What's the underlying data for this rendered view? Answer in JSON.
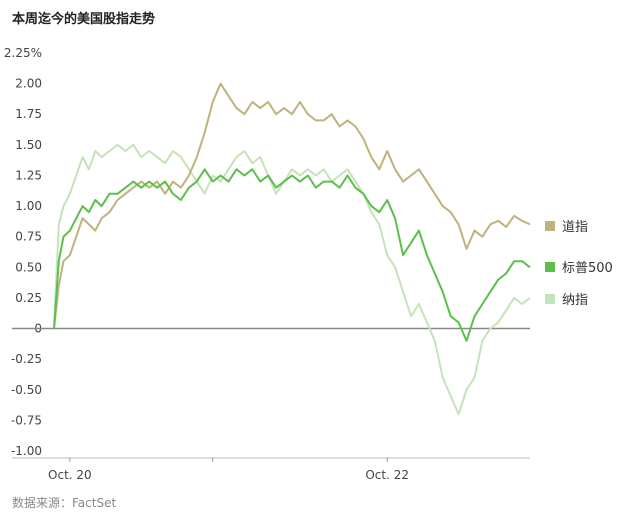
{
  "title": "本周迄今的美国股指走势",
  "source": "数据来源：FactSet",
  "chart_data": {
    "type": "line",
    "title": "本周迄今的美国股指走势",
    "ylabel": "",
    "xlabel": "",
    "ylim": [
      -1.0,
      2.25
    ],
    "yticks": [
      {
        "value": 2.25,
        "label": "2.25%"
      },
      {
        "value": 2.0,
        "label": "2.00"
      },
      {
        "value": 1.75,
        "label": "1.75"
      },
      {
        "value": 1.5,
        "label": "1.50"
      },
      {
        "value": 1.25,
        "label": "1.25"
      },
      {
        "value": 1.0,
        "label": "1.00"
      },
      {
        "value": 0.75,
        "label": "0.75"
      },
      {
        "value": 0.5,
        "label": "0.50"
      },
      {
        "value": 0.25,
        "label": "0.25"
      },
      {
        "value": 0.0,
        "label": "0"
      },
      {
        "value": -0.25,
        "label": "-0.25"
      },
      {
        "value": -0.5,
        "label": "-0.50"
      },
      {
        "value": -0.75,
        "label": "-0.75"
      },
      {
        "value": -1.0,
        "label": "-1.00"
      }
    ],
    "xlim": [
      0,
      3
    ],
    "xticks": [
      {
        "value": 0.1,
        "label": "Oct. 20"
      },
      {
        "value": 1.0,
        "label": ""
      },
      {
        "value": 2.1,
        "label": "Oct. 22"
      }
    ],
    "grid": false,
    "legend_position": "right",
    "series": [
      {
        "name": "道指",
        "color": "#bfb27c",
        "x": [
          0.0,
          0.03,
          0.06,
          0.1,
          0.14,
          0.18,
          0.22,
          0.26,
          0.3,
          0.35,
          0.4,
          0.45,
          0.5,
          0.55,
          0.6,
          0.65,
          0.7,
          0.75,
          0.8,
          0.85,
          0.9,
          0.95,
          1.0,
          1.05,
          1.1,
          1.15,
          1.2,
          1.25,
          1.3,
          1.35,
          1.4,
          1.45,
          1.5,
          1.55,
          1.6,
          1.65,
          1.7,
          1.75,
          1.8,
          1.85,
          1.9,
          1.95,
          2.0,
          2.05,
          2.1,
          2.15,
          2.2,
          2.25,
          2.3,
          2.35,
          2.4,
          2.45,
          2.5,
          2.55,
          2.6,
          2.65,
          2.7,
          2.75,
          2.8,
          2.85,
          2.9,
          2.95,
          3.0
        ],
        "y": [
          0.0,
          0.35,
          0.55,
          0.6,
          0.75,
          0.9,
          0.85,
          0.8,
          0.9,
          0.95,
          1.05,
          1.1,
          1.15,
          1.2,
          1.15,
          1.2,
          1.1,
          1.2,
          1.15,
          1.25,
          1.4,
          1.6,
          1.85,
          2.0,
          1.9,
          1.8,
          1.75,
          1.85,
          1.8,
          1.85,
          1.75,
          1.8,
          1.75,
          1.85,
          1.75,
          1.7,
          1.7,
          1.75,
          1.65,
          1.7,
          1.65,
          1.55,
          1.4,
          1.3,
          1.45,
          1.3,
          1.2,
          1.25,
          1.3,
          1.2,
          1.1,
          1.0,
          0.95,
          0.85,
          0.65,
          0.8,
          0.75,
          0.85,
          0.88,
          0.83,
          0.92,
          0.88,
          0.85
        ]
      },
      {
        "name": "标普500",
        "color": "#5cbf4c",
        "x": [
          0.0,
          0.03,
          0.06,
          0.1,
          0.14,
          0.18,
          0.22,
          0.26,
          0.3,
          0.35,
          0.4,
          0.45,
          0.5,
          0.55,
          0.6,
          0.65,
          0.7,
          0.75,
          0.8,
          0.85,
          0.9,
          0.95,
          1.0,
          1.05,
          1.1,
          1.15,
          1.2,
          1.25,
          1.3,
          1.35,
          1.4,
          1.45,
          1.5,
          1.55,
          1.6,
          1.65,
          1.7,
          1.75,
          1.8,
          1.85,
          1.9,
          1.95,
          2.0,
          2.05,
          2.1,
          2.15,
          2.2,
          2.25,
          2.3,
          2.35,
          2.4,
          2.45,
          2.5,
          2.55,
          2.6,
          2.65,
          2.7,
          2.75,
          2.8,
          2.85,
          2.9,
          2.95,
          3.0
        ],
        "y": [
          0.0,
          0.55,
          0.75,
          0.8,
          0.9,
          1.0,
          0.95,
          1.05,
          1.0,
          1.1,
          1.1,
          1.15,
          1.2,
          1.15,
          1.2,
          1.15,
          1.2,
          1.1,
          1.05,
          1.15,
          1.2,
          1.3,
          1.2,
          1.25,
          1.2,
          1.3,
          1.25,
          1.3,
          1.2,
          1.25,
          1.15,
          1.2,
          1.25,
          1.2,
          1.25,
          1.15,
          1.2,
          1.2,
          1.15,
          1.25,
          1.15,
          1.1,
          1.0,
          0.95,
          1.05,
          0.9,
          0.6,
          0.7,
          0.8,
          0.6,
          0.45,
          0.3,
          0.1,
          0.05,
          -0.1,
          0.1,
          0.2,
          0.3,
          0.4,
          0.45,
          0.55,
          0.55,
          0.5
        ]
      },
      {
        "name": "纳指",
        "color": "#c5e3b9",
        "x": [
          0.0,
          0.03,
          0.06,
          0.1,
          0.14,
          0.18,
          0.22,
          0.26,
          0.3,
          0.35,
          0.4,
          0.45,
          0.5,
          0.55,
          0.6,
          0.65,
          0.7,
          0.75,
          0.8,
          0.85,
          0.9,
          0.95,
          1.0,
          1.05,
          1.1,
          1.15,
          1.2,
          1.25,
          1.3,
          1.35,
          1.4,
          1.45,
          1.5,
          1.55,
          1.6,
          1.65,
          1.7,
          1.75,
          1.8,
          1.85,
          1.9,
          1.95,
          2.0,
          2.05,
          2.1,
          2.15,
          2.2,
          2.25,
          2.3,
          2.35,
          2.4,
          2.45,
          2.5,
          2.55,
          2.6,
          2.65,
          2.7,
          2.75,
          2.8,
          2.85,
          2.9,
          2.95,
          3.0
        ],
        "y": [
          0.0,
          0.85,
          1.0,
          1.1,
          1.25,
          1.4,
          1.3,
          1.45,
          1.4,
          1.45,
          1.5,
          1.45,
          1.5,
          1.4,
          1.45,
          1.4,
          1.35,
          1.45,
          1.4,
          1.3,
          1.2,
          1.1,
          1.25,
          1.2,
          1.3,
          1.4,
          1.45,
          1.35,
          1.4,
          1.25,
          1.1,
          1.2,
          1.3,
          1.25,
          1.3,
          1.25,
          1.3,
          1.2,
          1.25,
          1.3,
          1.2,
          1.1,
          0.95,
          0.85,
          0.6,
          0.5,
          0.3,
          0.1,
          0.2,
          0.05,
          -0.1,
          -0.4,
          -0.55,
          -0.7,
          -0.5,
          -0.4,
          -0.1,
          0.0,
          0.05,
          0.15,
          0.25,
          0.2,
          0.25
        ]
      }
    ]
  }
}
